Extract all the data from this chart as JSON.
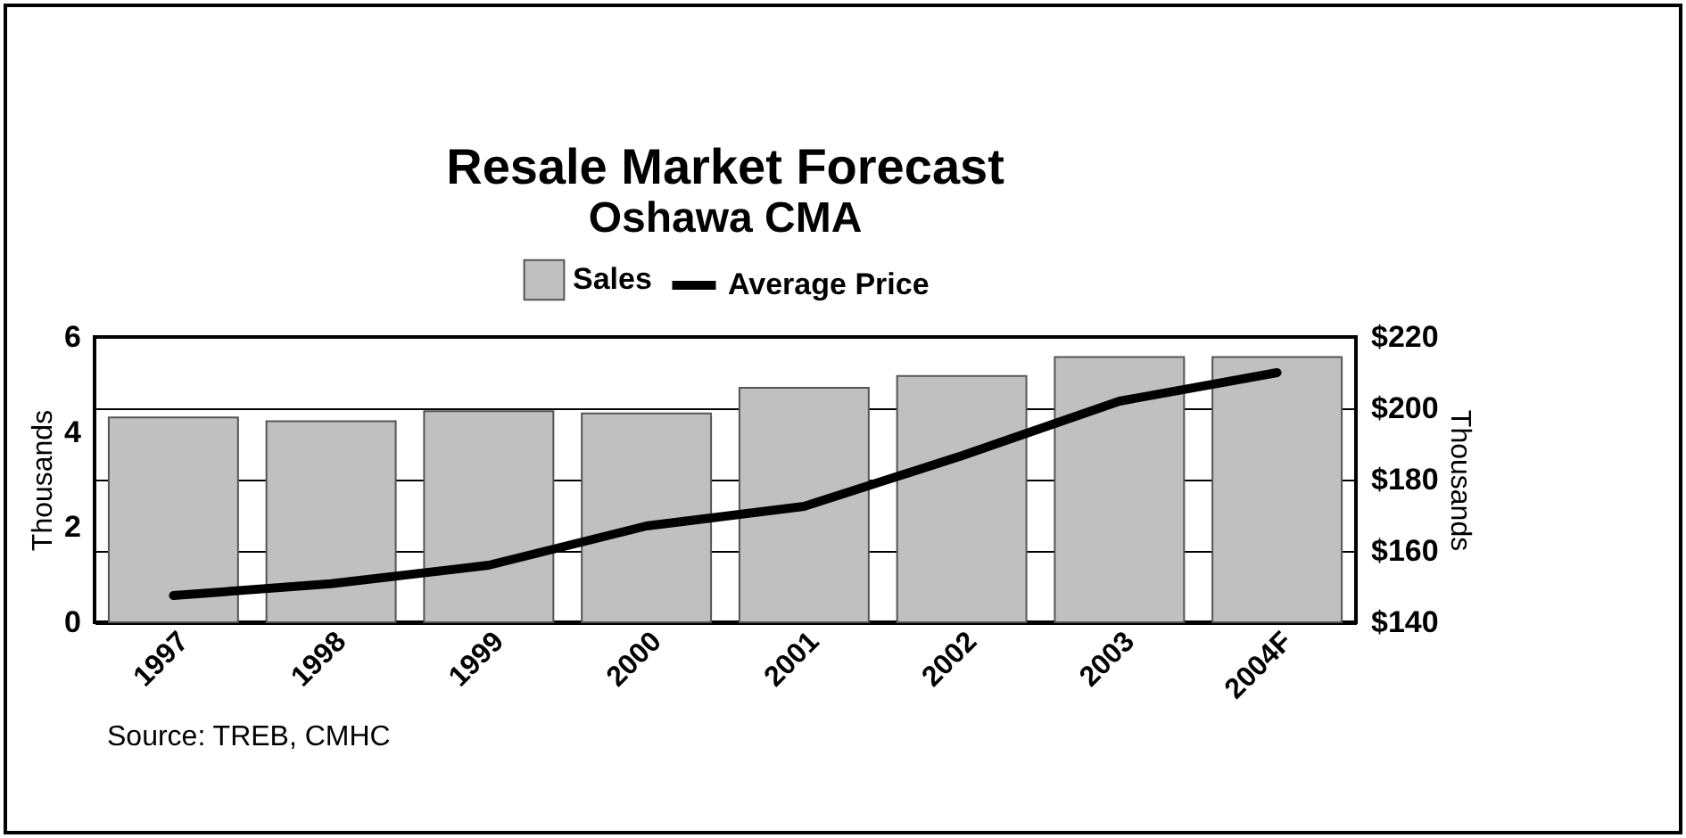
{
  "chart_data": {
    "type": "bar",
    "title": "Resale Market Forecast",
    "subtitle": "Oshawa CMA",
    "ylabel": "Thousands",
    "y2label": "Thousands",
    "categories": [
      "1997",
      "1998",
      "1999",
      "2000",
      "2001",
      "2002",
      "2003",
      "2004F"
    ],
    "series": [
      {
        "name": "Average Price",
        "type": "line",
        "axis": "y2",
        "color": "#000000",
        "values": [
          147.5,
          150.8,
          156,
          167,
          172.5,
          186.7,
          202,
          210
        ]
      },
      {
        "name": "Sales",
        "color": "#c0c0c0",
        "values": [
          4.31,
          4.23,
          4.44,
          4.39,
          4.93,
          5.18,
          5.58,
          5.58
        ]
      }
    ],
    "ylim": [
      0,
      6
    ],
    "yticks": [
      0,
      2,
      4,
      6
    ],
    "y2lim": [
      140,
      220
    ],
    "y2ticks": [
      {
        "value": 140,
        "label": "$140"
      },
      {
        "value": 160,
        "label": "$160"
      },
      {
        "value": 180,
        "label": "$180"
      },
      {
        "value": 200,
        "label": "$200"
      },
      {
        "value": 220,
        "label": "$220"
      }
    ],
    "grid": "y2",
    "legend": "top",
    "marker": "none",
    "line_style": "solid",
    "annotations": [
      "Source: TREB, CMHC"
    ]
  }
}
